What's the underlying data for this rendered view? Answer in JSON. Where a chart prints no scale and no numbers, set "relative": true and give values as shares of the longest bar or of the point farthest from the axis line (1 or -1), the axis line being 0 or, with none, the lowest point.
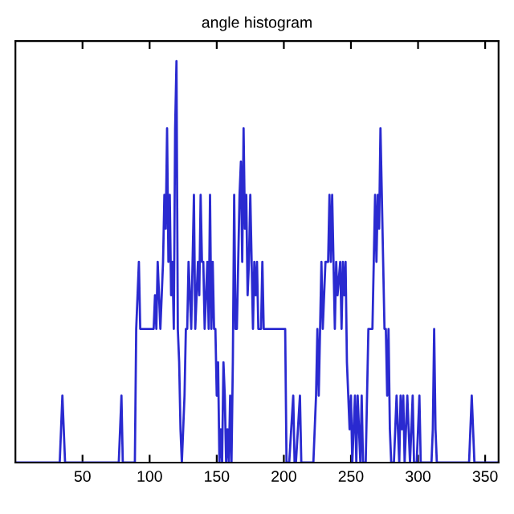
{
  "chart_data": {
    "type": "line",
    "title": "angle histogram",
    "relative": true,
    "xlim": [
      0,
      360
    ],
    "xticks": [
      50,
      100,
      150,
      200,
      250,
      300,
      350
    ],
    "grid": false,
    "marker": "none",
    "line_style": "solid",
    "series": [
      {
        "color": "#2a2ad0",
        "x": [
          0,
          33,
          34,
          35,
          36,
          37,
          77,
          78,
          79,
          80,
          89,
          90,
          92,
          93,
          103,
          104,
          105,
          106,
          107,
          108,
          110,
          111,
          112,
          113,
          114,
          115,
          116,
          117,
          118,
          119,
          120,
          121,
          122,
          123,
          124,
          125,
          126,
          127,
          128,
          129,
          130,
          131,
          133,
          134,
          136,
          137,
          138,
          139,
          140,
          141,
          143,
          144,
          145,
          146,
          147,
          148,
          149,
          150,
          151,
          152,
          153,
          154,
          155,
          156,
          157,
          158,
          159,
          160,
          161,
          162,
          163,
          164,
          165,
          166,
          167,
          168,
          169,
          170,
          171,
          172,
          173,
          174,
          175,
          176,
          177,
          178,
          179,
          180,
          181,
          183,
          184,
          185,
          187,
          201,
          202,
          204,
          207,
          208,
          209,
          212,
          213,
          214,
          222,
          224,
          225,
          226,
          227,
          228,
          229,
          231,
          233,
          234,
          235,
          236,
          237,
          238,
          239,
          240,
          242,
          243,
          244,
          245,
          246,
          247,
          248,
          249,
          250,
          251,
          252,
          253,
          254,
          255,
          256,
          257,
          258,
          259,
          261,
          262,
          263,
          264,
          266,
          267,
          268,
          269,
          270,
          271,
          272,
          273,
          274,
          275,
          276,
          277,
          278,
          279,
          280,
          282,
          283,
          284,
          285,
          286,
          287,
          288,
          289,
          290,
          291,
          292,
          293,
          294,
          295,
          296,
          297,
          299,
          300,
          301,
          302,
          310,
          311,
          312,
          313,
          314,
          338,
          339,
          340,
          341,
          342,
          360
        ],
        "values": [
          0,
          0,
          0.083,
          0.167,
          0.083,
          0,
          0,
          0.083,
          0.167,
          0,
          0,
          0.333,
          0.5,
          0.333,
          0.333,
          0.417,
          0.333,
          0.5,
          0.417,
          0.333,
          0.5,
          0.667,
          0.583,
          0.833,
          0.5,
          0.667,
          0.417,
          0.5,
          0.333,
          0.833,
          1,
          0.333,
          0.25,
          0.083,
          0,
          0.083,
          0.167,
          0.333,
          0.333,
          0.5,
          0.417,
          0.333,
          0.667,
          0.333,
          0.5,
          0.417,
          0.667,
          0.5,
          0.5,
          0.333,
          0.5,
          0.333,
          0.667,
          0.333,
          0.5,
          0.333,
          0.333,
          0.167,
          0.25,
          0,
          0.083,
          0,
          0.25,
          0.167,
          0,
          0.083,
          0,
          0.167,
          0,
          0.25,
          0.667,
          0.333,
          0.333,
          0.5,
          0.667,
          0.75,
          0.5,
          0.833,
          0.583,
          0.667,
          0.417,
          0.5,
          0.667,
          0.5,
          0.333,
          0.5,
          0.417,
          0.5,
          0.333,
          0.333,
          0.5,
          0.333,
          0.333,
          0.333,
          0,
          0,
          0.167,
          0,
          0,
          0.167,
          0,
          0,
          0,
          0.167,
          0.333,
          0.167,
          0.333,
          0.5,
          0.333,
          0.5,
          0.5,
          0.667,
          0.5,
          0.667,
          0.5,
          0.333,
          0.5,
          0.417,
          0.5,
          0.333,
          0.5,
          0.417,
          0.5,
          0.25,
          0.167,
          0.083,
          0.167,
          0,
          0.083,
          0.167,
          0,
          0.167,
          0.083,
          0,
          0.167,
          0,
          0,
          0.167,
          0.333,
          0.333,
          0.333,
          0.5,
          0.667,
          0.5,
          0.667,
          0.583,
          0.833,
          0.667,
          0.5,
          0.333,
          0.333,
          0.167,
          0.333,
          0.083,
          0,
          0,
          0.083,
          0.167,
          0.083,
          0,
          0.167,
          0.083,
          0.167,
          0,
          0.083,
          0.167,
          0.083,
          0,
          0.083,
          0.167,
          0,
          0,
          0.083,
          0.167,
          0,
          0,
          0.083,
          0.333,
          0.083,
          0,
          0,
          0.083,
          0.167,
          0.083,
          0,
          0
        ]
      }
    ]
  }
}
